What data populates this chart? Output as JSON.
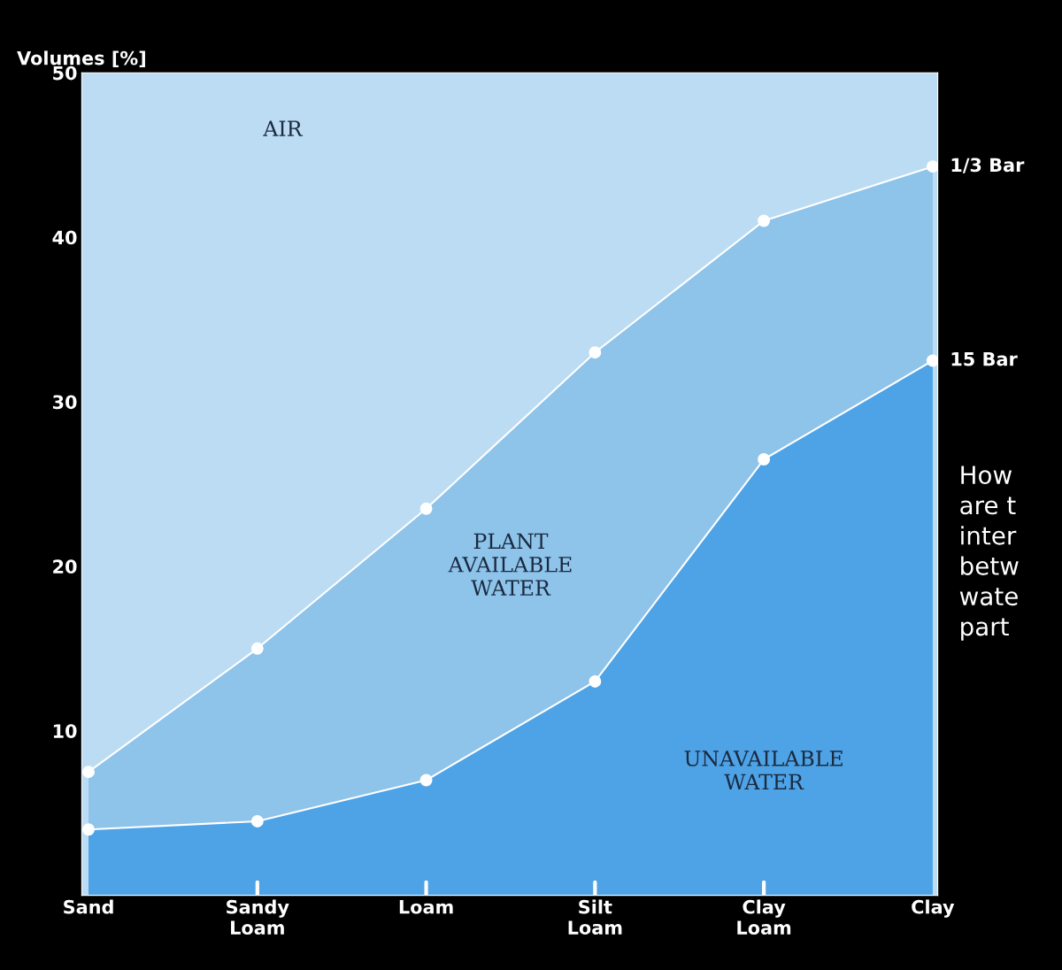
{
  "chart_data": {
    "type": "area",
    "ylabel": "Volumes [%]",
    "categories": [
      "Sand",
      "Sandy\nLoam",
      "Loam",
      "Silt\nLoam",
      "Clay\nLoam",
      "Clay"
    ],
    "series": [
      {
        "name": "1/3 Bar",
        "color": "#8ec3ea",
        "values": [
          7.5,
          15,
          23.5,
          33,
          41,
          44.3
        ]
      },
      {
        "name": "15 Bar",
        "color": "#4ea3e6",
        "values": [
          4,
          4.5,
          7,
          13,
          26.5,
          32.5
        ]
      }
    ],
    "bands": [
      {
        "axis": "y",
        "from": 0,
        "to": 50,
        "color": "#bcdcf3"
      }
    ],
    "ylim": [
      0,
      50
    ],
    "yticks": [
      10,
      20,
      30,
      40,
      50
    ],
    "marker": "circle",
    "grid": false,
    "legend": false,
    "annotations": [
      "AIR",
      "PLANT\nAVAILABLE\nWATER",
      "UNAVAILABLE\nWATER",
      "How\nare t\ninter\nbetw\nwate\npart"
    ]
  }
}
